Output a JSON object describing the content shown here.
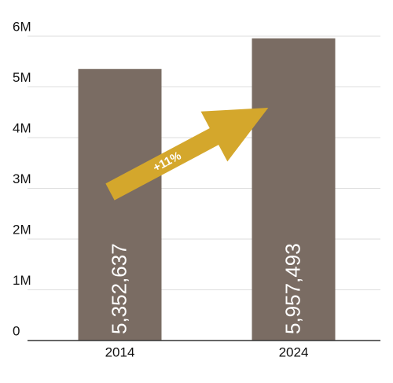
{
  "chart_data": {
    "type": "bar",
    "categories": [
      "2014",
      "2024"
    ],
    "values": [
      5352637,
      5957493
    ],
    "value_labels": [
      "5,352,637",
      "5,957,493"
    ],
    "color": "#7a6c63",
    "ylim": [
      0,
      6000000
    ],
    "yticks": [
      0,
      {
        "value": 1000000,
        "label": "1M"
      },
      {
        "value": 2000000,
        "label": "2M"
      },
      {
        "value": 3000000,
        "label": "3M"
      },
      {
        "value": 4000000,
        "label": "4M"
      },
      {
        "value": 5000000,
        "label": "5M"
      },
      {
        "value": 6000000,
        "label": "6M"
      }
    ],
    "grid": true,
    "annotation": "+11%"
  }
}
